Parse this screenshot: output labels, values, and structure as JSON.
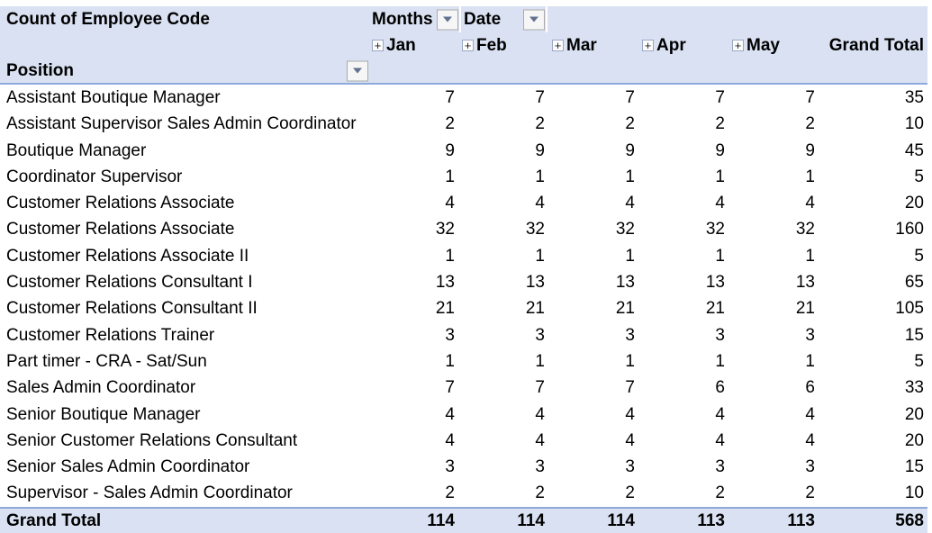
{
  "pivot": {
    "title": "Count of Employee Code",
    "months_filter_label": "Months",
    "date_filter_label": "Date",
    "row_filter_label": "Position",
    "expand_glyph": "+",
    "columns": [
      "Jan",
      "Feb",
      "Mar",
      "Apr",
      "May"
    ],
    "grand_total_column_label": "Grand Total",
    "grand_total_row_label": "Grand Total",
    "rows": [
      {
        "position": "Assistant Boutique Manager",
        "values": [
          7,
          7,
          7,
          7,
          7
        ],
        "total": 35
      },
      {
        "position": "Assistant Supervisor Sales Admin Coordinator",
        "values": [
          2,
          2,
          2,
          2,
          2
        ],
        "total": 10
      },
      {
        "position": "Boutique Manager",
        "values": [
          9,
          9,
          9,
          9,
          9
        ],
        "total": 45
      },
      {
        "position": "Coordinator Supervisor",
        "values": [
          1,
          1,
          1,
          1,
          1
        ],
        "total": 5
      },
      {
        "position": "Customer Relations Associate",
        "values": [
          4,
          4,
          4,
          4,
          4
        ],
        "total": 20
      },
      {
        "position": "Customer Relations Associate",
        "values": [
          32,
          32,
          32,
          32,
          32
        ],
        "total": 160
      },
      {
        "position": "Customer Relations Associate II",
        "values": [
          1,
          1,
          1,
          1,
          1
        ],
        "total": 5
      },
      {
        "position": "Customer Relations Consultant I",
        "values": [
          13,
          13,
          13,
          13,
          13
        ],
        "total": 65
      },
      {
        "position": "Customer Relations Consultant II",
        "values": [
          21,
          21,
          21,
          21,
          21
        ],
        "total": 105
      },
      {
        "position": "Customer Relations Trainer",
        "values": [
          3,
          3,
          3,
          3,
          3
        ],
        "total": 15
      },
      {
        "position": "Part timer - CRA - Sat/Sun",
        "values": [
          1,
          1,
          1,
          1,
          1
        ],
        "total": 5
      },
      {
        "position": "Sales Admin Coordinator",
        "values": [
          7,
          7,
          7,
          6,
          6
        ],
        "total": 33
      },
      {
        "position": "Senior Boutique Manager",
        "values": [
          4,
          4,
          4,
          4,
          4
        ],
        "total": 20
      },
      {
        "position": "Senior Customer Relations Consultant",
        "values": [
          4,
          4,
          4,
          4,
          4
        ],
        "total": 20
      },
      {
        "position": "Senior Sales Admin Coordinator",
        "values": [
          3,
          3,
          3,
          3,
          3
        ],
        "total": 15
      },
      {
        "position": "Supervisor - Sales Admin Coordinator",
        "values": [
          2,
          2,
          2,
          2,
          2
        ],
        "total": 10
      }
    ],
    "grand_total_row": {
      "values": [
        114,
        114,
        114,
        113,
        113
      ],
      "total": 568
    },
    "colors": {
      "header_bg": "#D9E1F2",
      "rule_blue": "#8EA9DB",
      "text": "#000000"
    }
  }
}
